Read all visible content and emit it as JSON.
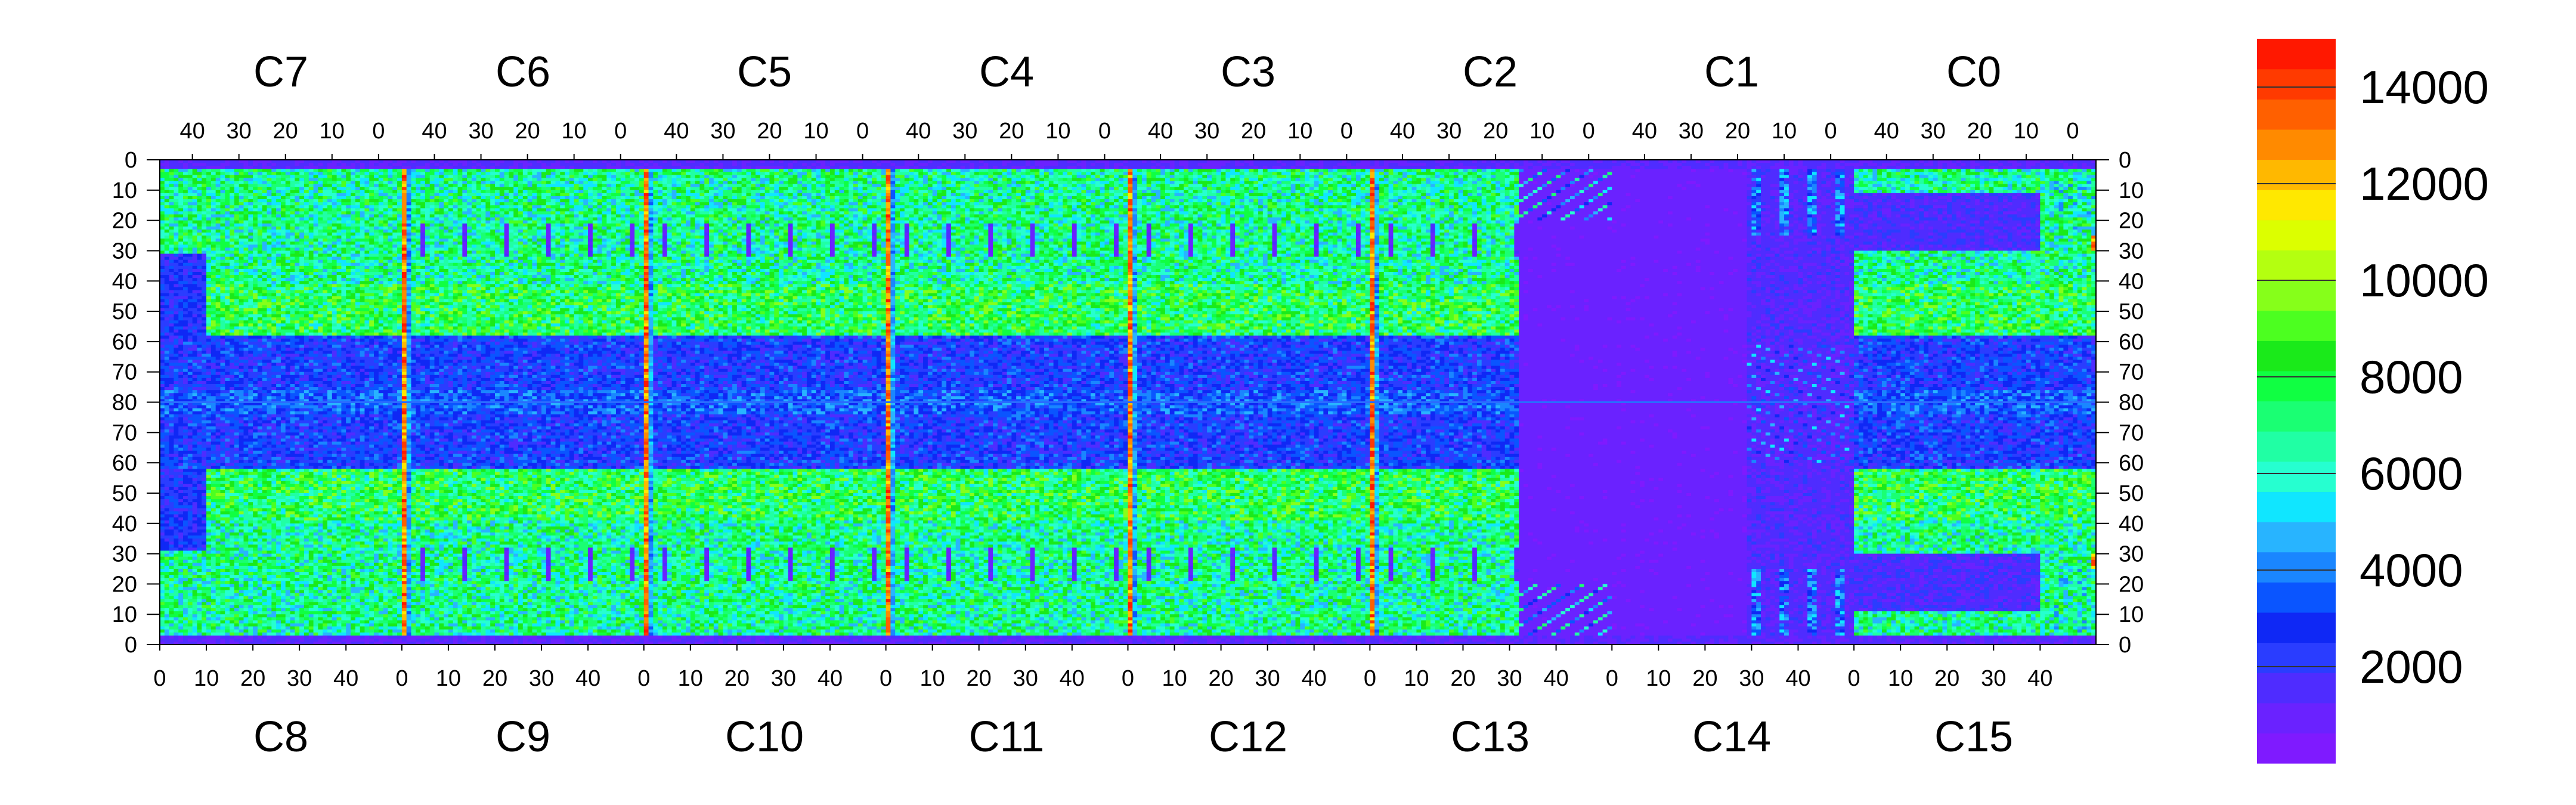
{
  "chart_data": {
    "type": "heatmap",
    "title": "",
    "colorbar": {
      "min": 0,
      "max": 15000,
      "ticks": [
        2000,
        4000,
        6000,
        8000,
        10000,
        12000,
        14000
      ],
      "tick_labels": [
        "2000",
        "4000",
        "6000",
        "8000",
        "10000",
        "12000",
        "14000"
      ],
      "colors": [
        "#7f1aff",
        "#6a22ff",
        "#4f2cff",
        "#2a3dff",
        "#0f28f5",
        "#0a55ff",
        "#1a86ff",
        "#28b4ff",
        "#10e6ff",
        "#26ffd0",
        "#20ffa4",
        "#1aff73",
        "#10ff42",
        "#1aea1a",
        "#4cff20",
        "#86ff1a",
        "#b4ff10",
        "#dcff00",
        "#ffe800",
        "#ffb800",
        "#ff8a00",
        "#ff6000",
        "#ff3a00",
        "#ff1800"
      ]
    },
    "top_chip_labels": [
      "C7",
      "C6",
      "C5",
      "C4",
      "C3",
      "C2",
      "C1",
      "C0"
    ],
    "bottom_chip_labels": [
      "C8",
      "C9",
      "C10",
      "C11",
      "C12",
      "C13",
      "C14",
      "C15"
    ],
    "top_tick_labels": [
      "40",
      "30",
      "20",
      "10",
      "0"
    ],
    "bottom_tick_labels": [
      "0",
      "10",
      "20",
      "30",
      "40"
    ],
    "y_tick_labels": [
      "0",
      "10",
      "20",
      "30",
      "40",
      "50",
      "60",
      "70",
      "80",
      "70",
      "60",
      "50",
      "40",
      "30",
      "20",
      "10",
      "0"
    ],
    "columns_per_chip": 52,
    "rows": 160,
    "low_region": "C1/C14 (right side of C2/C13)",
    "hot_column_value": 14000,
    "typical_pixel_value": 6000
  }
}
